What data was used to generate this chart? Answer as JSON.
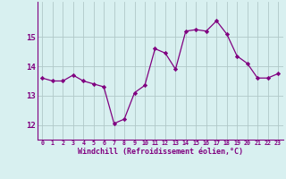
{
  "x": [
    0,
    1,
    2,
    3,
    4,
    5,
    6,
    7,
    8,
    9,
    10,
    11,
    12,
    13,
    14,
    15,
    16,
    17,
    18,
    19,
    20,
    21,
    22,
    23
  ],
  "y": [
    13.6,
    13.5,
    13.5,
    13.7,
    13.5,
    13.4,
    13.3,
    12.05,
    12.2,
    13.1,
    13.35,
    14.6,
    14.45,
    13.9,
    15.2,
    15.25,
    15.2,
    15.55,
    15.1,
    14.35,
    14.1,
    13.6,
    13.6,
    13.75
  ],
  "line_color": "#800080",
  "marker": "D",
  "marker_size": 2.2,
  "bg_color": "#d8f0f0",
  "grid_color": "#b0c8c8",
  "xlabel": "Windchill (Refroidissement éolien,°C)",
  "xlabel_color": "#800080",
  "tick_color": "#800080",
  "ylim": [
    11.5,
    16.2
  ],
  "xlim": [
    -0.5,
    23.5
  ],
  "yticks": [
    12,
    13,
    14,
    15
  ],
  "xticks": [
    0,
    1,
    2,
    3,
    4,
    5,
    6,
    7,
    8,
    9,
    10,
    11,
    12,
    13,
    14,
    15,
    16,
    17,
    18,
    19,
    20,
    21,
    22,
    23
  ]
}
